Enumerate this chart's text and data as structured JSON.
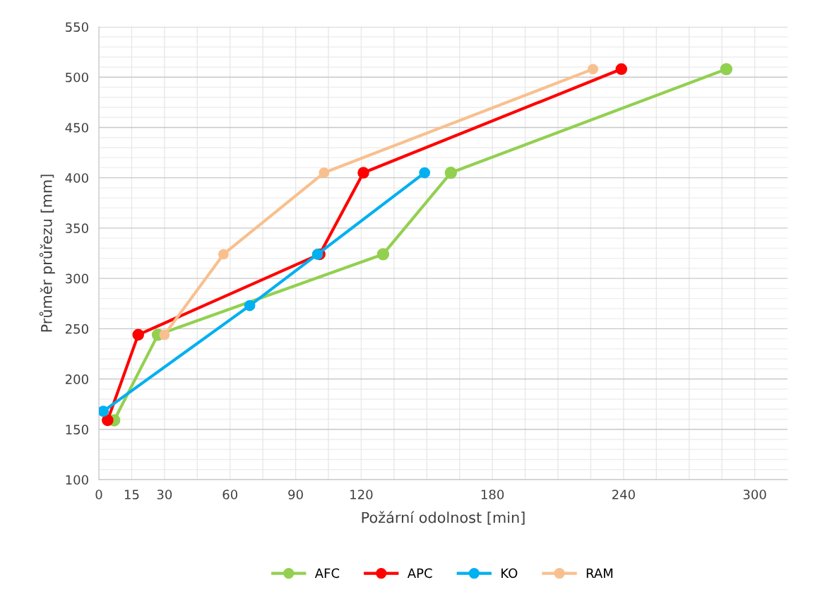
{
  "chart_data": {
    "type": "line",
    "xlabel": "Požární odolnost [min]",
    "ylabel": "Průměr průřezu [mm]",
    "xlim": [
      0,
      315
    ],
    "ylim": [
      100,
      550
    ],
    "xticks": [
      0,
      15,
      30,
      {
        "value": 45,
        "label": null
      },
      60,
      {
        "value": 75,
        "label": null
      },
      90,
      {
        "value": 105,
        "label": null
      },
      120,
      {
        "value": 135,
        "label": null
      },
      {
        "value": 150,
        "label": null
      },
      {
        "value": 165,
        "label": null
      },
      180,
      {
        "value": 195,
        "label": null
      },
      {
        "value": 210,
        "label": null
      },
      {
        "value": 225,
        "label": null
      },
      240,
      {
        "value": 255,
        "label": null
      },
      {
        "value": 270,
        "label": null
      },
      {
        "value": 285,
        "label": null
      },
      300
    ],
    "yticks": [
      100,
      150,
      200,
      250,
      300,
      350,
      400,
      450,
      500,
      550
    ],
    "grid": true,
    "legend": "bottom",
    "marker": "circle",
    "line_style": "solid",
    "series": [
      {
        "name": "AFC",
        "color": "#92d050",
        "x": [
          7,
          27,
          130,
          161,
          287
        ],
        "values": [
          159,
          244,
          324,
          405,
          508
        ]
      },
      {
        "name": "APC",
        "color": "#ff0000",
        "x": [
          4,
          18,
          101,
          121,
          239
        ],
        "values": [
          159,
          244,
          324,
          405,
          508
        ]
      },
      {
        "name": "KO",
        "color": "#00b0f0",
        "x": [
          2,
          69,
          100,
          149
        ],
        "values": [
          168,
          273,
          324,
          405
        ]
      },
      {
        "name": "RAM",
        "color": "#f8c08f",
        "x": [
          30,
          57,
          103,
          226
        ],
        "values": [
          244,
          324,
          405,
          508
        ]
      }
    ]
  }
}
